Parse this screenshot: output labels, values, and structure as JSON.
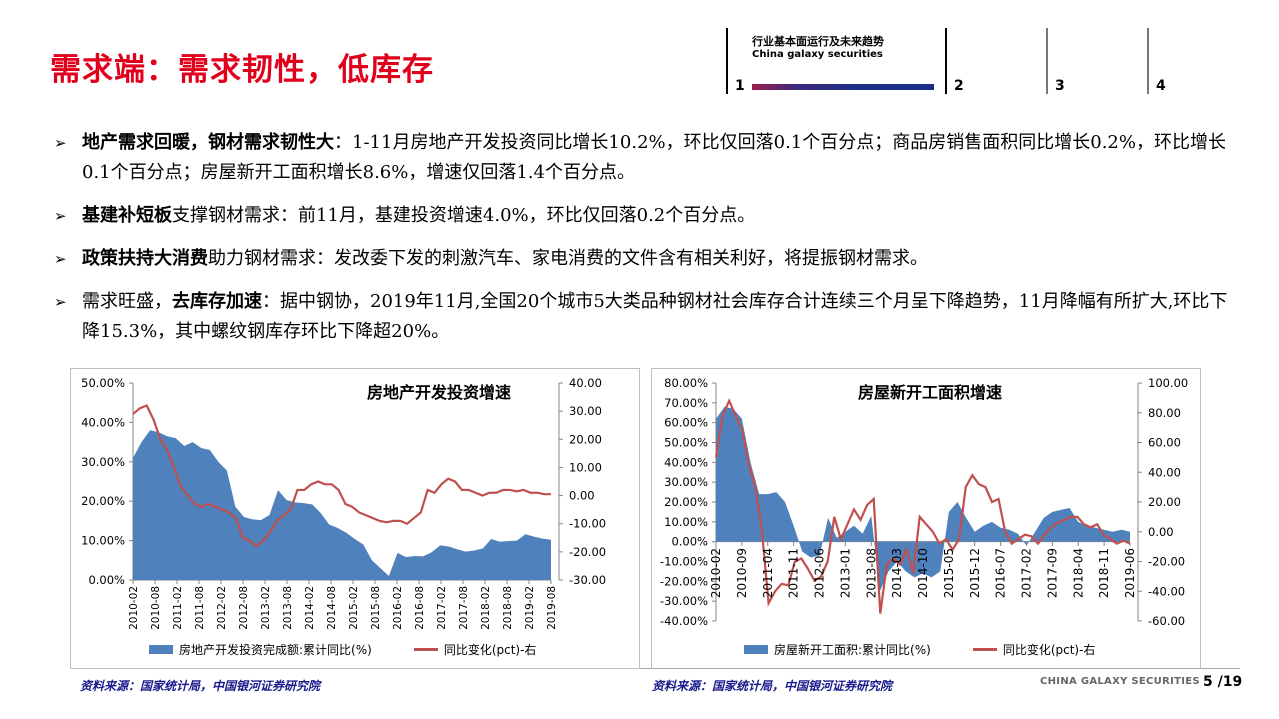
{
  "page": {
    "title": "需求端：需求韧性，低库存",
    "nav": {
      "section_title": "行业基本面运行及未来趋势",
      "section_sub": "China galaxy securities",
      "sections": [
        "1",
        "2",
        "3",
        "4"
      ],
      "active": "1"
    },
    "bullets": [
      {
        "bold": "地产需求回暖，钢材需求韧性大",
        "text": "：1-11月房地产开发投资同比增长10.2%，环比仅回落0.1个百分点；商品房销售面积同比增长0.2%，环比增长0.1个百分点；房屋新开工面积增长8.6%，增速仅回落1.4个百分点。",
        "prefix": ""
      },
      {
        "bold": "基建补短板",
        "text": "支撑钢材需求：前11月，基建投资增速4.0%，环比仅回落0.2个百分点。",
        "prefix": ""
      },
      {
        "bold": "政策扶持大消费",
        "text": "助力钢材需求：发改委下发的刺激汽车、家电消费的文件含有相关利好，将提振钢材需求。",
        "prefix": ""
      },
      {
        "prefix": "需求旺盛，",
        "bold": "去库存加速",
        "text": "：据中钢协，2019年11月,全国20个城市5大类品种钢材社会库存合计连续三个月呈下降趋势，11月降幅有所扩大,环比下降15.3%，其中螺纹钢库存环比下降超20%。"
      }
    ],
    "bullet_symbol": "➢",
    "source_left": "资料来源：国家统计局，中国银河证券研究院",
    "source_right": "资料来源：国家统计局，中国银河证券研究院",
    "brand": "CHINA GALAXY SECURITIES",
    "page_number": "5 /19",
    "colors": {
      "title_red": "#e0001b",
      "area_blue": "#4f81bd",
      "line_red": "#c0504d",
      "source_navy": "#1a1a8c"
    }
  },
  "chart_data": [
    {
      "type": "area+line",
      "title": "房地产开发投资增速",
      "categories": [
        "2010-02",
        "2010-08",
        "2011-02",
        "2011-08",
        "2012-02",
        "2012-08",
        "2013-02",
        "2013-08",
        "2014-02",
        "2014-08",
        "2015-02",
        "2015-08",
        "2016-02",
        "2016-08",
        "2017-02",
        "2017-08",
        "2018-02",
        "2018-08",
        "2019-02",
        "2019-08"
      ],
      "y_left": {
        "ticks": [
          "50.00%",
          "40.00%",
          "30.00%",
          "20.00%",
          "10.00%",
          "0.00%"
        ],
        "range": [
          0,
          50
        ]
      },
      "y_right": {
        "ticks": [
          "40.00",
          "30.00",
          "20.00",
          "10.00",
          "0.00",
          "-10.00",
          "-20.00",
          "-30.00"
        ],
        "range": [
          -30,
          40
        ]
      },
      "series": [
        {
          "name": "房地产开发投资完成额:累计同比(%)",
          "axis": "left",
          "kind": "area",
          "values": [
            31,
            35,
            38,
            37.5,
            36.5,
            36,
            34,
            35,
            33.5,
            33,
            30,
            27.8,
            18.6,
            16,
            15.4,
            15.2,
            16.5,
            22.8,
            20.3,
            19.7,
            19.5,
            19.2,
            17,
            14.1,
            13.2,
            12,
            10.4,
            9.0,
            5.0,
            3.0,
            1.0,
            6.9,
            5.8,
            6.1,
            6.0,
            7.0,
            8.8,
            8.5,
            7.8,
            7.2,
            7.5,
            8.0,
            10.4,
            9.7,
            9.9,
            10.0,
            11.6,
            11.0,
            10.5,
            10.2
          ]
        },
        {
          "name": "同比变化(pct)-右",
          "axis": "right",
          "kind": "line",
          "values": [
            29,
            31,
            32,
            27,
            20,
            16,
            10,
            3,
            0,
            -3,
            -4,
            -3,
            -4,
            -5,
            -6,
            -8,
            -15,
            -16,
            -18,
            -16,
            -13,
            -9,
            -7,
            -5,
            2,
            2,
            4,
            5,
            4,
            4,
            2,
            -3,
            -4,
            -6,
            -7,
            -8,
            -9,
            -9.5,
            -9,
            -9,
            -10,
            -8,
            -6,
            2,
            1,
            4,
            6,
            5,
            2,
            2,
            1,
            0,
            1,
            1,
            2,
            2,
            1.5,
            2,
            1,
            1,
            0.5,
            0.5
          ]
        }
      ],
      "legend": [
        "房地产开发投资完成额:累计同比(%)",
        "同比变化(pct)-右"
      ],
      "legend_position": "bottom"
    },
    {
      "type": "area+line",
      "title": "房屋新开工面积增速",
      "categories": [
        "2010-02",
        "2010-09",
        "2011-04",
        "2011-11",
        "2012-06",
        "2013-01",
        "2013-08",
        "2014-03",
        "2014-10",
        "2015-05",
        "2015-12",
        "2016-07",
        "2017-02",
        "2017-09",
        "2018-04",
        "2018-11",
        "2019-06"
      ],
      "y_left": {
        "ticks": [
          "80.00%",
          "70.00%",
          "60.00%",
          "50.00%",
          "40.00%",
          "30.00%",
          "20.00%",
          "10.00%",
          "0.00%",
          "-10.00%",
          "-20.00%",
          "-30.00%",
          "-40.00%"
        ],
        "range": [
          -40,
          80
        ]
      },
      "y_right": {
        "ticks": [
          "100.00",
          "80.00",
          "60.00",
          "40.00",
          "20.00",
          "0.00",
          "-20.00",
          "-40.00",
          "-60.00"
        ],
        "range": [
          -60,
          100
        ]
      },
      "series": [
        {
          "name": "房屋新开工面积:累计同比(%)",
          "axis": "left",
          "kind": "area",
          "values": [
            62,
            68,
            67,
            62,
            40,
            24,
            24,
            25,
            20,
            8,
            -5,
            -8,
            -7,
            12,
            2,
            5,
            8,
            4,
            13,
            -25,
            -15,
            -10,
            -15,
            -18,
            -16,
            -18,
            -15,
            15,
            20,
            12,
            5,
            8,
            10,
            7,
            6,
            4,
            -2,
            5,
            12,
            15,
            16,
            17,
            10,
            8,
            7,
            6,
            5,
            6,
            5
          ]
        },
        {
          "name": "同比变化(pct)-右",
          "axis": "right",
          "kind": "line",
          "values": [
            50,
            78,
            88,
            78,
            68,
            45,
            30,
            0,
            -48,
            -40,
            -35,
            -36,
            -20,
            -18,
            -25,
            -33,
            -30,
            -20,
            10,
            -5,
            5,
            15,
            8,
            18,
            22,
            -55,
            -22,
            -18,
            -22,
            -12,
            -28,
            10,
            5,
            0,
            -8,
            -5,
            -12,
            -5,
            30,
            38,
            32,
            30,
            20,
            22,
            0,
            -8,
            -5,
            -2,
            -3,
            -8,
            -2,
            3,
            6,
            8,
            10,
            10,
            5,
            3,
            5,
            -2,
            -5,
            -8,
            -6,
            -8
          ]
        }
      ],
      "legend": [
        "房屋新开工面积:累计同比(%)",
        "同比变化(pct)-右"
      ],
      "legend_position": "bottom"
    }
  ]
}
